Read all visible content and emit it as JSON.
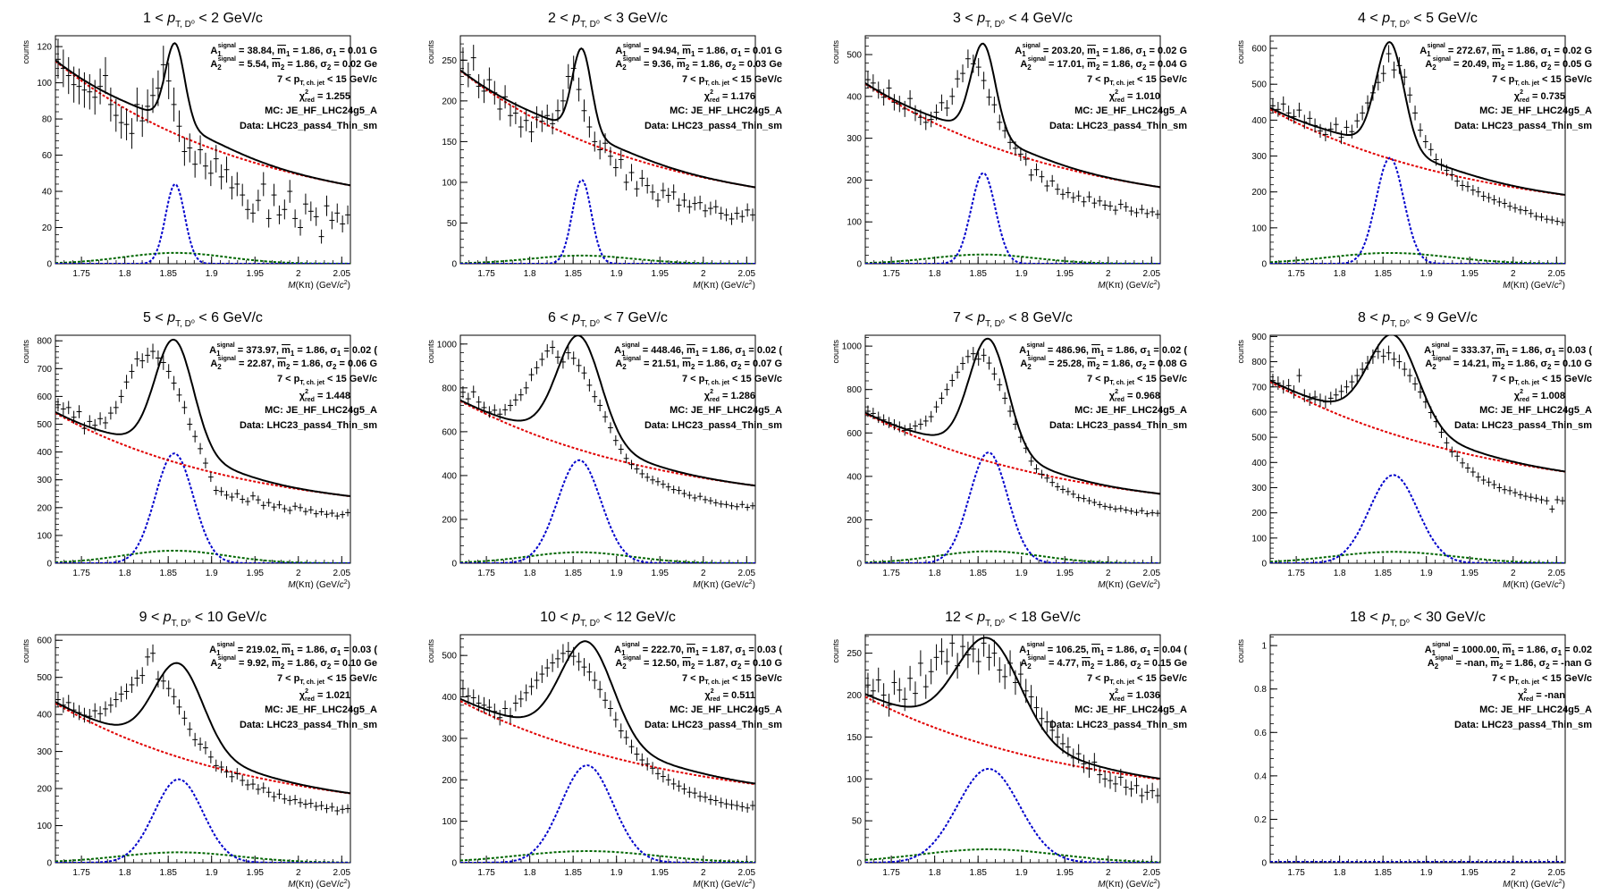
{
  "common": {
    "yunit": "counts",
    "xlabel_prefix": "M",
    "xlabel_mid": "(Kπ) (GeV/",
    "xlabel_unit": "c",
    "xlabel_sup": "2",
    "xlabel_close": ")",
    "xticks": [
      "1.75",
      "1.8",
      "1.85",
      "1.9",
      "1.95",
      "2",
      "2.05"
    ],
    "xlim": [
      1.72,
      2.06
    ],
    "jet_cut_text": "7 < p",
    "jet_cut_sub": "T, ch. jet",
    "jet_cut_tail": " < 15 GeV/c",
    "chi2_label": "χ",
    "chi2_sub": "red",
    "chi2_sup": "2",
    "mc_text": "MC: JE_HF_LHC24g5_A",
    "data_text": "Data: LHC23_pass4_Thin_sm",
    "colors": {
      "data": "#000000",
      "total_fit": "#000000",
      "background": "#e00000",
      "signal": "#0000cc",
      "reflection": "#006600"
    }
  },
  "chart_data": [
    {
      "type": "scatter",
      "title_lo": "1 <",
      "title_hi": "< 2 GeV/c",
      "title_var": "p",
      "title_sub": "T, D⁰",
      "ylim": [
        0,
        126
      ],
      "yticks": [
        0,
        20,
        40,
        60,
        80,
        100,
        120
      ],
      "fit": {
        "mu": 1.858,
        "sigma": 0.011,
        "sigAmp": 44,
        "bgA": 112,
        "bgB": 23,
        "bgTau": 0.23,
        "reflAmp": 6,
        "reflSigma": 0.06
      },
      "points_y": [
        113,
        108,
        104,
        99,
        98,
        96,
        95,
        92,
        98,
        104,
        88,
        82,
        78,
        77,
        72,
        88,
        79,
        87,
        93,
        97,
        110,
        101,
        88,
        76,
        62,
        64,
        55,
        63,
        54,
        50,
        58,
        48,
        52,
        42,
        44,
        38,
        30,
        28,
        35,
        44,
        25,
        38,
        27,
        30,
        40,
        25,
        20,
        33,
        29,
        26,
        15,
        32,
        24,
        28,
        22,
        27
      ],
      "legend": {
        "a1": "38.84",
        "m1": "1.86",
        "s1": "0.01 G",
        "a2": "5.54",
        "m2": "1.86",
        "s2": "0.02 Ge",
        "chi2": "1.255"
      }
    },
    {
      "type": "scatter",
      "title_lo": "2 <",
      "title_hi": "< 3 GeV/c",
      "title_var": "p",
      "title_sub": "T, D⁰",
      "ylim": [
        0,
        280
      ],
      "yticks": [
        0,
        50,
        100,
        150,
        200,
        250
      ],
      "fit": {
        "mu": 1.86,
        "sigma": 0.011,
        "sigAmp": 103,
        "bgA": 237,
        "bgB": 55,
        "bgTau": 0.22,
        "reflAmp": 10,
        "reflSigma": 0.06
      },
      "points_y": [
        250,
        232,
        253,
        218,
        212,
        226,
        210,
        190,
        205,
        182,
        185,
        168,
        176,
        162,
        180,
        175,
        182,
        172,
        188,
        200,
        230,
        240,
        214,
        188,
        168,
        150,
        140,
        148,
        132,
        118,
        128,
        100,
        112,
        92,
        105,
        96,
        88,
        78,
        90,
        84,
        88,
        72,
        78,
        70,
        74,
        75,
        65,
        68,
        70,
        62,
        60,
        55,
        62,
        58,
        66,
        60
      ],
      "legend": {
        "a1": "94.94",
        "m1": "1.86",
        "s1": "0.01 G",
        "a2": "9.36",
        "m2": "1.86",
        "s2": "0.03 Ge",
        "chi2": "1.176"
      }
    },
    {
      "type": "scatter",
      "title_lo": "3 <",
      "title_hi": "< 4 GeV/c",
      "title_var": "p",
      "title_sub": "T, D⁰",
      "ylim": [
        0,
        545
      ],
      "yticks": [
        0,
        100,
        200,
        300,
        400,
        500
      ],
      "fit": {
        "mu": 1.856,
        "sigma": 0.014,
        "sigAmp": 217,
        "bgA": 430,
        "bgB": 110,
        "bgTau": 0.23,
        "reflAmp": 22,
        "reflSigma": 0.06
      },
      "points_y": [
        440,
        432,
        415,
        398,
        420,
        386,
        382,
        370,
        395,
        360,
        350,
        338,
        345,
        362,
        385,
        372,
        400,
        442,
        455,
        490,
        478,
        470,
        438,
        398,
        380,
        338,
        318,
        290,
        276,
        262,
        250,
        212,
        225,
        208,
        186,
        198,
        178,
        166,
        170,
        158,
        162,
        148,
        160,
        145,
        150,
        140,
        138,
        128,
        142,
        136,
        126,
        122,
        130,
        120,
        124,
        118
      ],
      "legend": {
        "a1": "203.20",
        "m1": "1.86",
        "s1": "0.02 G",
        "a2": "17.01",
        "m2": "1.86",
        "s2": "0.04 G",
        "chi2": "1.010"
      }
    },
    {
      "type": "scatter",
      "title_lo": "4 <",
      "title_hi": "< 5 GeV/c",
      "title_var": "p",
      "title_sub": "T, D⁰",
      "ylim": [
        0,
        635
      ],
      "yticks": [
        0,
        100,
        200,
        300,
        400,
        500,
        600
      ],
      "fit": {
        "mu": 1.858,
        "sigma": 0.016,
        "sigAmp": 295,
        "bgA": 430,
        "bgB": 115,
        "bgTau": 0.24,
        "reflAmp": 30,
        "reflSigma": 0.07
      },
      "points_y": [
        440,
        430,
        445,
        420,
        410,
        428,
        395,
        405,
        385,
        370,
        360,
        375,
        388,
        352,
        380,
        368,
        398,
        420,
        448,
        476,
        505,
        530,
        585,
        540,
        552,
        520,
        470,
        420,
        372,
        340,
        318,
        290,
        276,
        260,
        248,
        230,
        218,
        215,
        205,
        200,
        188,
        184,
        178,
        172,
        168,
        160,
        155,
        150,
        148,
        140,
        132,
        130,
        124,
        122,
        118,
        115
      ],
      "legend": {
        "a1": "272.67",
        "m1": "1.86",
        "s1": "0.02 G",
        "a2": "20.49",
        "m2": "1.86",
        "s2": "0.05 G",
        "chi2": "0.735"
      }
    },
    {
      "type": "scatter",
      "title_lo": "5 <",
      "title_hi": "< 6 GeV/c",
      "title_var": "p",
      "title_sub": "T, D⁰",
      "ylim": [
        0,
        820
      ],
      "yticks": [
        0,
        100,
        200,
        300,
        400,
        500,
        600,
        700,
        800
      ],
      "fit": {
        "mu": 1.857,
        "sigma": 0.022,
        "sigAmp": 395,
        "bgA": 540,
        "bgB": 160,
        "bgTau": 0.22,
        "reflAmp": 45,
        "reflSigma": 0.06
      },
      "points_y": [
        570,
        555,
        560,
        525,
        545,
        485,
        510,
        496,
        520,
        505,
        540,
        560,
        600,
        652,
        690,
        735,
        728,
        748,
        762,
        738,
        722,
        690,
        648,
        605,
        560,
        500,
        456,
        412,
        360,
        310,
        262,
        258,
        245,
        238,
        250,
        230,
        222,
        242,
        228,
        208,
        218,
        202,
        210,
        196,
        190,
        205,
        200,
        186,
        192,
        178,
        185,
        176,
        180,
        170,
        175,
        182
      ],
      "legend": {
        "a1": "373.97",
        "m1": "1.86",
        "s1": "0.02 (",
        "a2": "22.87",
        "m2": "1.86",
        "s2": "0.06 G",
        "chi2": "1.448"
      }
    },
    {
      "type": "scatter",
      "title_lo": "6 <",
      "title_hi": "< 7 GeV/c",
      "title_var": "p",
      "title_sub": "T, D⁰",
      "ylim": [
        0,
        1040
      ],
      "yticks": [
        0,
        200,
        400,
        600,
        800,
        1000
      ],
      "fit": {
        "mu": 1.857,
        "sigma": 0.025,
        "sigAmp": 470,
        "bgA": 740,
        "bgB": 230,
        "bgTau": 0.24,
        "reflAmp": 50,
        "reflSigma": 0.06
      },
      "points_y": [
        780,
        750,
        782,
        735,
        710,
        690,
        698,
        680,
        700,
        720,
        745,
        768,
        800,
        860,
        892,
        930,
        968,
        985,
        940,
        918,
        960,
        935,
        902,
        868,
        812,
        760,
        720,
        668,
        618,
        560,
        520,
        478,
        450,
        430,
        408,
        392,
        380,
        372,
        360,
        348,
        336,
        332,
        318,
        310,
        298,
        305,
        290,
        285,
        276,
        270,
        268,
        262,
        258,
        268,
        255,
        262
      ],
      "legend": {
        "a1": "448.46",
        "m1": "1.86",
        "s1": "0.02 (",
        "a2": "21.51",
        "m2": "1.86",
        "s2": "0.07 G",
        "chi2": "1.286"
      }
    },
    {
      "type": "scatter",
      "title_lo": "7 <",
      "title_hi": "< 8 GeV/c",
      "title_var": "p",
      "title_sub": "T, D⁰",
      "ylim": [
        0,
        1050
      ],
      "yticks": [
        0,
        200,
        400,
        600,
        800,
        1000
      ],
      "fit": {
        "mu": 1.862,
        "sigma": 0.022,
        "sigAmp": 510,
        "bgA": 690,
        "bgB": 210,
        "bgTau": 0.23,
        "reflAmp": 55,
        "reflSigma": 0.06
      },
      "points_y": [
        700,
        690,
        672,
        660,
        648,
        638,
        628,
        612,
        620,
        632,
        640,
        655,
        675,
        720,
        760,
        800,
        842,
        880,
        920,
        952,
        965,
        940,
        958,
        922,
        872,
        822,
        760,
        700,
        640,
        580,
        530,
        470,
        435,
        410,
        392,
        372,
        352,
        340,
        330,
        318,
        302,
        298,
        288,
        280,
        270,
        262,
        258,
        250,
        252,
        245,
        240,
        234,
        242,
        228,
        232,
        230
      ],
      "legend": {
        "a1": "486.96",
        "m1": "1.86",
        "s1": "0.02 (",
        "a2": "25.28",
        "m2": "1.86",
        "s2": "0.08 G",
        "chi2": "0.968"
      }
    },
    {
      "type": "scatter",
      "title_lo": "8 <",
      "title_hi": "< 9 GeV/c",
      "title_var": "p",
      "title_sub": "T, D⁰",
      "ylim": [
        0,
        905
      ],
      "yticks": [
        0,
        100,
        200,
        300,
        400,
        500,
        600,
        700,
        800,
        900
      ],
      "fit": {
        "mu": 1.862,
        "sigma": 0.028,
        "sigAmp": 350,
        "bgA": 720,
        "bgB": 240,
        "bgTau": 0.25,
        "reflAmp": 45,
        "reflSigma": 0.07
      },
      "points_y": [
        725,
        715,
        700,
        705,
        680,
        745,
        665,
        650,
        660,
        648,
        640,
        655,
        668,
        682,
        700,
        720,
        745,
        770,
        795,
        820,
        840,
        822,
        835,
        810,
        800,
        770,
        745,
        712,
        680,
        640,
        598,
        562,
        520,
        478,
        442,
        425,
        398,
        378,
        362,
        342,
        330,
        322,
        312,
        300,
        292,
        288,
        280,
        272,
        266,
        262,
        258,
        252,
        248,
        215,
        252,
        248
      ],
      "legend": {
        "a1": "333.37",
        "m1": "1.86",
        "s1": "0.03 (",
        "a2": "14.21",
        "m2": "1.86",
        "s2": "0.10 G",
        "chi2": "1.008"
      }
    },
    {
      "type": "scatter",
      "title_lo": "9 <",
      "title_hi": "< 10 GeV/c",
      "title_var": "p",
      "title_sub": "T, D⁰",
      "ylim": [
        0,
        615
      ],
      "yticks": [
        0,
        100,
        200,
        300,
        400,
        500,
        600
      ],
      "fit": {
        "mu": 1.862,
        "sigma": 0.028,
        "sigAmp": 225,
        "bgA": 430,
        "bgB": 115,
        "bgTau": 0.23,
        "reflAmp": 28,
        "reflSigma": 0.07
      },
      "points_y": [
        440,
        425,
        432,
        412,
        405,
        398,
        395,
        410,
        402,
        415,
        425,
        440,
        455,
        462,
        480,
        498,
        505,
        555,
        565,
        495,
        490,
        470,
        448,
        420,
        390,
        360,
        332,
        320,
        310,
        285,
        262,
        258,
        245,
        232,
        240,
        222,
        210,
        212,
        198,
        202,
        190,
        178,
        185,
        172,
        168,
        170,
        162,
        158,
        160,
        152,
        154,
        146,
        150,
        140,
        144,
        146
      ],
      "legend": {
        "a1": "219.02",
        "m1": "1.86",
        "s1": "0.03 (",
        "a2": "9.92",
        "m2": "1.86",
        "s2": "0.10 Ge",
        "chi2": "1.021"
      }
    },
    {
      "type": "scatter",
      "title_lo": "10 <",
      "title_hi": "< 12 GeV/c",
      "title_var": "p",
      "title_sub": "T, D⁰",
      "ylim": [
        0,
        550
      ],
      "yticks": [
        0,
        100,
        200,
        300,
        400,
        500
      ],
      "fit": {
        "mu": 1.866,
        "sigma": 0.03,
        "sigAmp": 235,
        "bgA": 390,
        "bgB": 120,
        "bgTau": 0.25,
        "reflAmp": 28,
        "reflSigma": 0.08
      },
      "points_y": [
        420,
        402,
        398,
        385,
        380,
        375,
        365,
        350,
        372,
        355,
        385,
        395,
        410,
        425,
        440,
        455,
        470,
        482,
        492,
        505,
        510,
        498,
        485,
        472,
        460,
        440,
        418,
        392,
        372,
        345,
        318,
        302,
        280,
        262,
        248,
        238,
        228,
        215,
        208,
        200,
        190,
        185,
        178,
        170,
        168,
        160,
        158,
        152,
        150,
        145,
        142,
        140,
        138,
        135,
        132,
        138
      ],
      "legend": {
        "a1": "222.70",
        "m1": "1.87",
        "s1": "0.03 (",
        "a2": "12.50",
        "m2": "1.87",
        "s2": "0.10 G",
        "chi2": "0.511"
      }
    },
    {
      "type": "scatter",
      "title_lo": "12 <",
      "title_hi": "< 18 GeV/c",
      "title_var": "p",
      "title_sub": "T, D⁰",
      "ylim": [
        0,
        272
      ],
      "yticks": [
        0,
        50,
        100,
        150,
        200,
        250
      ],
      "fit": {
        "mu": 1.862,
        "sigma": 0.036,
        "sigAmp": 112,
        "bgA": 198,
        "bgB": 68,
        "bgTau": 0.24,
        "reflAmp": 16,
        "reflSigma": 0.08
      },
      "points_y": [
        212,
        205,
        218,
        200,
        188,
        215,
        206,
        195,
        220,
        202,
        238,
        210,
        228,
        245,
        252,
        240,
        262,
        235,
        258,
        248,
        255,
        240,
        262,
        245,
        250,
        230,
        222,
        238,
        215,
        225,
        205,
        198,
        185,
        172,
        168,
        158,
        150,
        142,
        138,
        125,
        130,
        118,
        112,
        120,
        105,
        100,
        98,
        94,
        102,
        90,
        88,
        92,
        80,
        84,
        86,
        80
      ],
      "legend": {
        "a1": "106.25",
        "m1": "1.86",
        "s1": "0.04 (",
        "a2": "4.77",
        "m2": "1.86",
        "s2": "0.15 Ge",
        "chi2": "1.036"
      }
    },
    {
      "type": "scatter",
      "title_lo": "18 <",
      "title_hi": "< 30 GeV/c",
      "title_var": "p",
      "title_sub": "T, D⁰",
      "ylim": [
        0,
        1.05
      ],
      "yticks": [
        0,
        0.2,
        0.4,
        0.6,
        0.8,
        1
      ],
      "fit": null,
      "points_y": [
        0,
        0,
        0,
        0,
        0,
        0,
        0,
        0,
        0,
        0,
        0,
        0,
        0,
        0,
        0,
        0,
        0,
        0,
        0,
        0,
        0,
        0,
        0,
        0,
        0,
        0,
        0,
        0,
        0,
        0,
        0,
        0,
        0,
        0,
        0,
        0,
        0,
        0,
        0,
        0,
        0,
        0,
        0,
        0,
        0,
        0,
        0,
        0,
        0,
        0,
        0,
        0,
        0,
        0,
        0,
        0
      ],
      "legend": {
        "a1": "1000.00",
        "m1": "1.86",
        "s1": "0.02",
        "a2": "-nan",
        "m2": "1.86",
        "s2": "-nan G",
        "chi2": "-nan"
      }
    }
  ]
}
